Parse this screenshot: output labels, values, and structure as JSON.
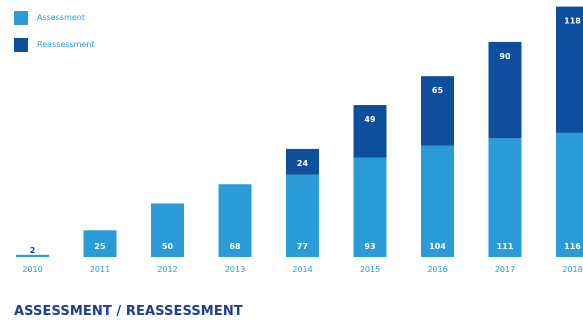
{
  "chart_data": {
    "type": "bar",
    "stacked": true,
    "title": "ASSESSMENT / REASSESSMENT",
    "categories": [
      "2010",
      "2011",
      "2012",
      "2013",
      "2014",
      "2015",
      "2016",
      "2017",
      "2018"
    ],
    "series": [
      {
        "name": "Assessment",
        "color": "#2a9bd6",
        "values": [
          2,
          25,
          50,
          68,
          77,
          93,
          104,
          111,
          116
        ]
      },
      {
        "name": "Reassessment",
        "color": "#0d4f9c",
        "values": [
          0,
          0,
          0,
          0,
          24,
          49,
          65,
          90,
          118
        ]
      }
    ],
    "value_labels": {
      "Assessment": [
        "2",
        "25",
        "50",
        "68",
        "77",
        "93",
        "104",
        "111",
        "116"
      ],
      "Reassessment": [
        "",
        "",
        "",
        "",
        "24",
        "49",
        "65",
        "90",
        "118"
      ]
    },
    "tick_labels": [
      "2010",
      "2011",
      "2012",
      "2013",
      "2014",
      "2015",
      "2016",
      "2017",
      "2018"
    ],
    "legend": {
      "position": "top-left",
      "items": [
        {
          "label": "Assessment",
          "color": "#2a9bd6"
        },
        {
          "label": "Reassessment",
          "color": "#0d4f9c"
        }
      ]
    },
    "grid": false
  }
}
